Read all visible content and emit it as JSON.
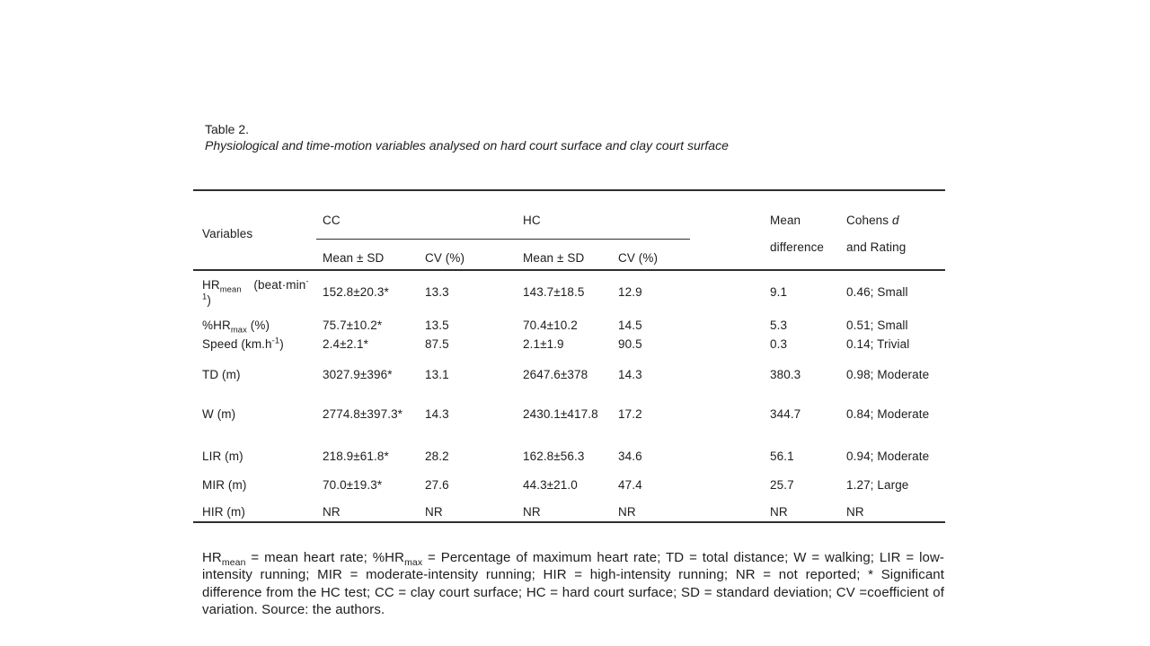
{
  "page": {
    "background": "#ffffff",
    "text_color": "#1d1d1d",
    "rule_color": "#2f2f2f"
  },
  "table_block": {
    "title": "Table 2.",
    "caption": "Physiological and time-motion variables analysed on hard court surface and clay court surface",
    "header": {
      "variables": "Variables",
      "group_cc": "CC",
      "group_hc": "HC",
      "sub_mean_sd": "Mean ± SD",
      "sub_cv": "CV (%)",
      "mean_diff_line1": "Mean",
      "mean_diff_line2": "difference",
      "cohens_line1": [
        {
          "t": "Cohens "
        },
        {
          "t": "d",
          "i": true
        }
      ],
      "cohens_line2": "and Rating"
    },
    "rows": [
      {
        "label": [
          {
            "t": "HR"
          },
          {
            "t": "mean",
            "sub": true
          },
          {
            "t": "  (beat·min"
          },
          {
            "t": "-",
            "sup": true
          },
          {
            "br": true
          },
          {
            "t": "1",
            "sup": true
          },
          {
            "t": ")"
          }
        ],
        "values": [
          "152.8±20.3*",
          "13.3",
          "143.7±18.5",
          "12.9",
          "9.1",
          "0.46; Small"
        ]
      },
      {
        "label": [
          {
            "t": "%HR"
          },
          {
            "t": "max",
            "sub": true
          },
          {
            "t": " (%)"
          }
        ],
        "values": [
          "75.7±10.2*",
          "13.5",
          "70.4±10.2",
          "14.5",
          "5.3",
          "0.51; Small"
        ]
      },
      {
        "label": [
          {
            "t": "Speed (km.h"
          },
          {
            "t": "-1",
            "sup": true
          },
          {
            "t": ")"
          }
        ],
        "values": [
          "2.4±2.1*",
          "87.5",
          "2.1±1.9",
          "90.5",
          "0.3",
          "0.14; Trivial"
        ]
      },
      {
        "label": [
          {
            "t": "TD (m)"
          }
        ],
        "values": [
          "3027.9±396*",
          "13.1",
          "2647.6±378",
          "14.3",
          "380.3",
          "0.98; Moderate"
        ]
      },
      {
        "label": [
          {
            "t": "W (m)"
          }
        ],
        "values": [
          "2774.8±397.3*",
          "14.3",
          "2430.1±417.8",
          "17.2",
          "344.7",
          "0.84; Moderate"
        ]
      },
      {
        "label": [
          {
            "t": "LIR (m)"
          }
        ],
        "values": [
          "218.9±61.8*",
          "28.2",
          "162.8±56.3",
          "34.6",
          "56.1",
          "0.94; Moderate"
        ]
      },
      {
        "label": [
          {
            "t": "MIR (m)"
          }
        ],
        "values": [
          "70.0±19.3*",
          "27.6",
          "44.3±21.0",
          "47.4",
          "25.7",
          "1.27; Large"
        ]
      },
      {
        "label": [
          {
            "t": "HIR (m)"
          }
        ],
        "values": [
          "NR",
          "NR",
          "NR",
          "NR",
          "NR",
          "NR"
        ]
      }
    ],
    "footnote": [
      {
        "t": "HR"
      },
      {
        "t": "mean",
        "sub": true
      },
      {
        "t": " = mean heart rate; %HR"
      },
      {
        "t": "max",
        "sub": true
      },
      {
        "t": " = Percentage of maximum heart rate; TD = total distance; W = walking; LIR = low-intensity running; MIR = moderate-intensity running; HIR = high-intensity running; NR = not reported; * Significant difference from the HC test; CC = clay court surface; HC = hard court surface; SD = standard deviation; CV =coefficient of variation. Source: the authors."
      }
    ]
  }
}
